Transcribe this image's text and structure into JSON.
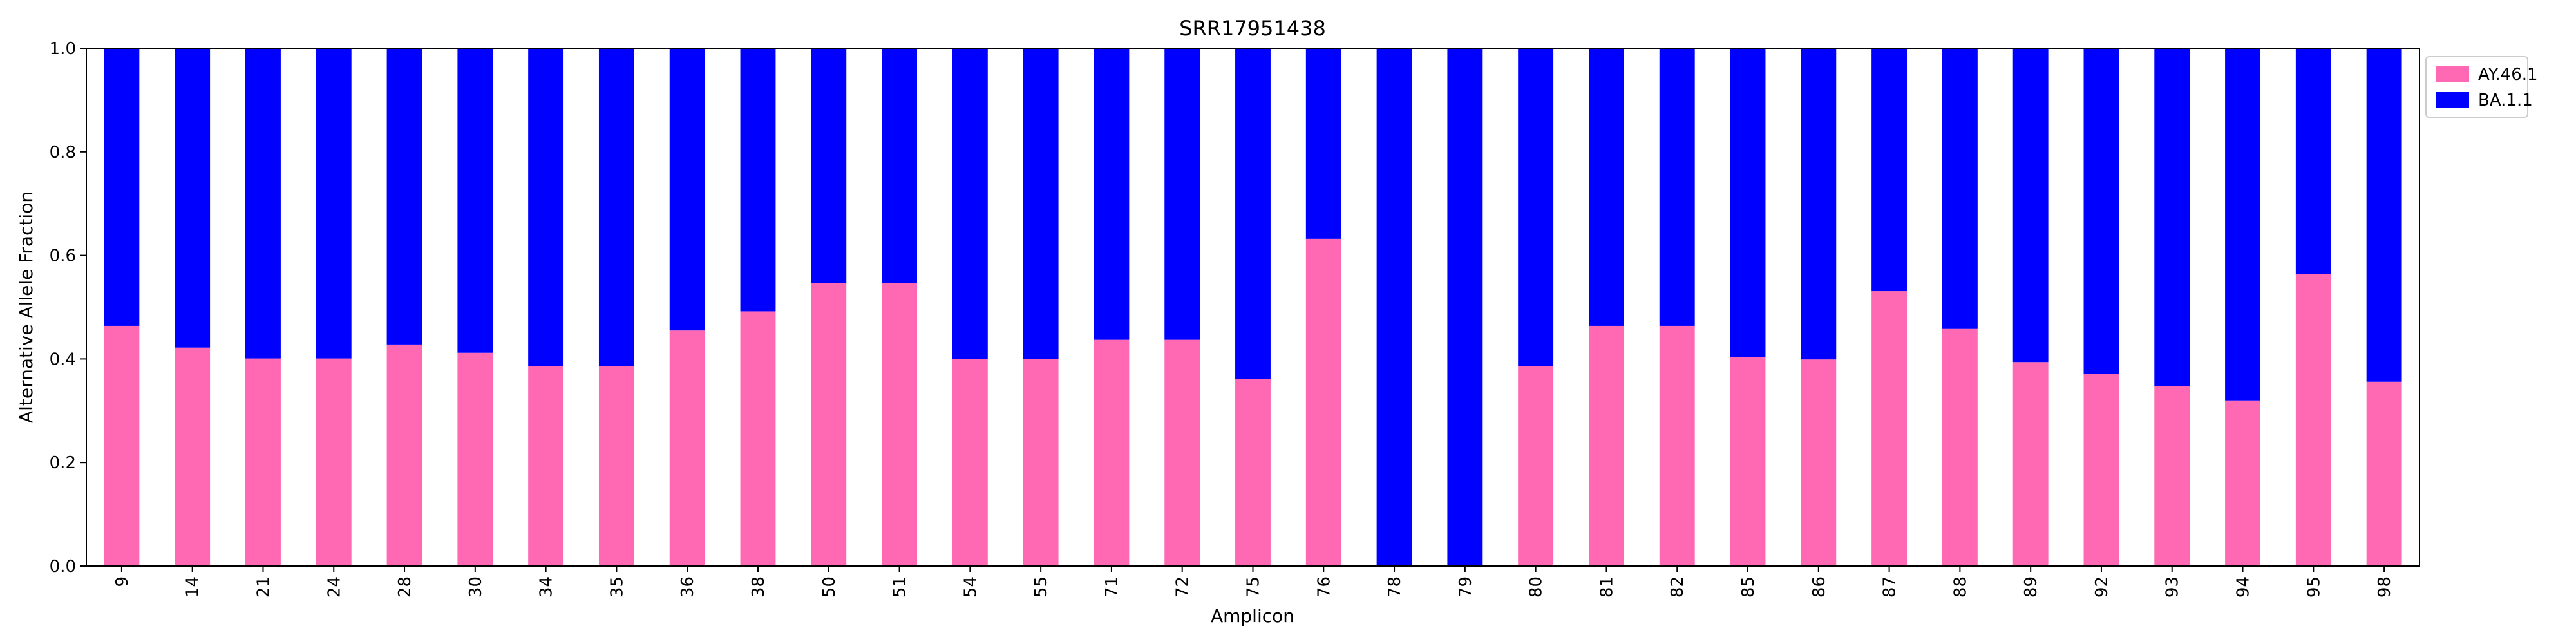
{
  "chart_data": {
    "type": "bar",
    "stacked": true,
    "title": "SRR17951438",
    "xlabel": "Amplicon",
    "ylabel": "Alternative Allele Fraction",
    "ylim": [
      0,
      1
    ],
    "yticks": [
      "0.0",
      "0.2",
      "0.4",
      "0.6",
      "0.8",
      "1.0"
    ],
    "legend_position": "outside-top-right",
    "categories": [
      "9",
      "14",
      "21",
      "24",
      "28",
      "30",
      "34",
      "35",
      "36",
      "38",
      "50",
      "51",
      "54",
      "55",
      "71",
      "72",
      "75",
      "76",
      "78",
      "79",
      "80",
      "81",
      "82",
      "85",
      "86",
      "87",
      "88",
      "89",
      "92",
      "93",
      "94",
      "95",
      "98"
    ],
    "series": [
      {
        "name": "AY.46.1",
        "color": "#ff69b4",
        "values": [
          0.464,
          0.422,
          0.401,
          0.401,
          0.428,
          0.412,
          0.386,
          0.386,
          0.455,
          0.492,
          0.547,
          0.547,
          0.4,
          0.4,
          0.437,
          0.437,
          0.361,
          0.632,
          0.0,
          0.0,
          0.386,
          0.464,
          0.464,
          0.404,
          0.399,
          0.531,
          0.458,
          0.394,
          0.371,
          0.347,
          0.32,
          0.564,
          0.356
        ]
      },
      {
        "name": "BA.1.1",
        "color": "#0000ff",
        "values": [
          0.536,
          0.578,
          0.599,
          0.599,
          0.572,
          0.588,
          0.614,
          0.614,
          0.545,
          0.508,
          0.453,
          0.453,
          0.6,
          0.6,
          0.563,
          0.563,
          0.639,
          0.368,
          1.0,
          1.0,
          0.614,
          0.536,
          0.536,
          0.596,
          0.601,
          0.469,
          0.542,
          0.606,
          0.629,
          0.653,
          0.68,
          0.436,
          0.644
        ]
      }
    ]
  }
}
